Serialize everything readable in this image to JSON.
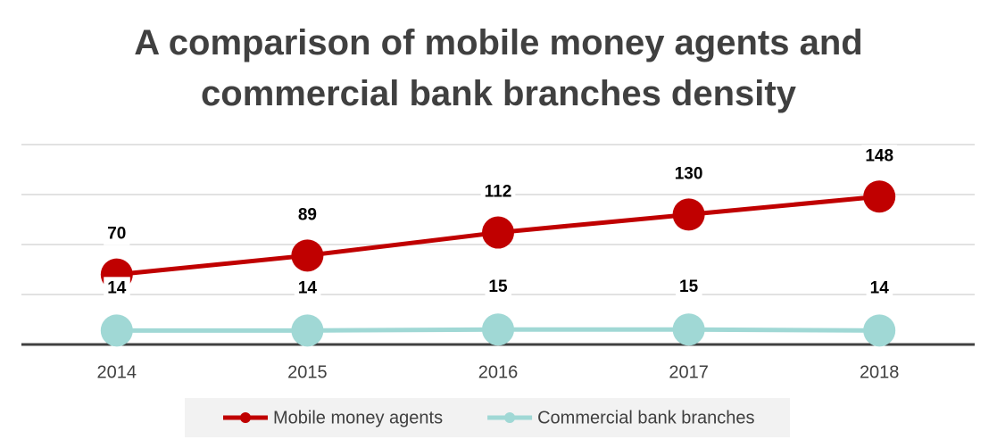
{
  "chart_data": {
    "type": "line",
    "title": "A comparison of mobile money agents and commercial bank branches density",
    "categories": [
      "2014",
      "2015",
      "2016",
      "2017",
      "2018"
    ],
    "series": [
      {
        "name": "Mobile money agents",
        "color": "#c00000",
        "values": [
          70,
          89,
          112,
          130,
          148
        ]
      },
      {
        "name": "Commercial bank branches",
        "color": "#a0d8d5",
        "values": [
          14,
          14,
          15,
          15,
          14
        ]
      }
    ],
    "ylim": [
      0,
      200
    ],
    "yticks": [
      0,
      50,
      100,
      150,
      200
    ],
    "grid": true,
    "legend": "bottom"
  }
}
